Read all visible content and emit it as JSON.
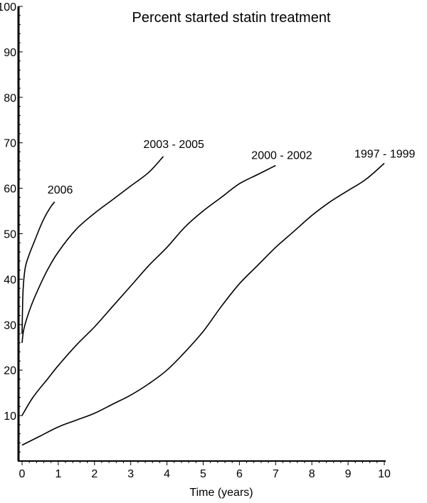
{
  "chart_data": {
    "type": "line",
    "title": "Percent started statin treatment",
    "xlabel": "Time (years)",
    "ylabel": "",
    "xlim": [
      0,
      10
    ],
    "ylim": [
      0,
      100
    ],
    "x_ticks": [
      "0",
      "1",
      "2",
      "3",
      "4",
      "5",
      "6",
      "7",
      "8",
      "9",
      "10"
    ],
    "y_ticks": [
      "10",
      "20",
      "30",
      "40",
      "50",
      "60",
      "70",
      "80",
      "90",
      "100"
    ],
    "grid": false,
    "colors": {
      "line": "#000000",
      "axis": "#000000",
      "background": "#ffffff"
    },
    "series": [
      {
        "name": "2006",
        "points": [
          [
            0,
            28
          ],
          [
            0.02,
            36
          ],
          [
            0.05,
            40
          ],
          [
            0.1,
            43
          ],
          [
            0.2,
            45.5
          ],
          [
            0.35,
            48.5
          ],
          [
            0.5,
            51.5
          ],
          [
            0.65,
            54
          ],
          [
            0.8,
            56
          ],
          [
            0.9,
            57
          ]
        ]
      },
      {
        "name": "2003 - 2005",
        "points": [
          [
            0,
            26
          ],
          [
            0.05,
            29
          ],
          [
            0.2,
            33
          ],
          [
            0.4,
            37
          ],
          [
            0.7,
            42
          ],
          [
            1.0,
            46
          ],
          [
            1.5,
            51
          ],
          [
            2.0,
            54.5
          ],
          [
            2.5,
            57.5
          ],
          [
            3.0,
            60.5
          ],
          [
            3.5,
            63.5
          ],
          [
            3.9,
            67
          ]
        ]
      },
      {
        "name": "2000 - 2002",
        "points": [
          [
            0,
            10
          ],
          [
            0.3,
            14
          ],
          [
            0.7,
            18
          ],
          [
            1.0,
            21
          ],
          [
            1.5,
            25.5
          ],
          [
            2.0,
            29.5
          ],
          [
            2.5,
            34
          ],
          [
            3.0,
            38.5
          ],
          [
            3.5,
            43
          ],
          [
            4.0,
            47
          ],
          [
            4.5,
            51.5
          ],
          [
            5.0,
            55
          ],
          [
            5.5,
            58
          ],
          [
            6.0,
            61
          ],
          [
            6.5,
            63
          ],
          [
            7.0,
            65
          ]
        ]
      },
      {
        "name": "1997 - 1999",
        "points": [
          [
            0,
            3.5
          ],
          [
            0.5,
            5.5
          ],
          [
            1.0,
            7.5
          ],
          [
            1.5,
            9
          ],
          [
            2.0,
            10.5
          ],
          [
            2.5,
            12.5
          ],
          [
            3.0,
            14.5
          ],
          [
            3.5,
            17
          ],
          [
            4.0,
            20
          ],
          [
            4.5,
            24
          ],
          [
            5.0,
            28.5
          ],
          [
            5.5,
            34
          ],
          [
            6.0,
            39
          ],
          [
            6.5,
            43
          ],
          [
            7.0,
            47
          ],
          [
            7.5,
            50.5
          ],
          [
            8.0,
            54
          ],
          [
            8.5,
            57
          ],
          [
            9.0,
            59.5
          ],
          [
            9.5,
            62
          ],
          [
            10.0,
            65.5
          ]
        ]
      }
    ]
  }
}
